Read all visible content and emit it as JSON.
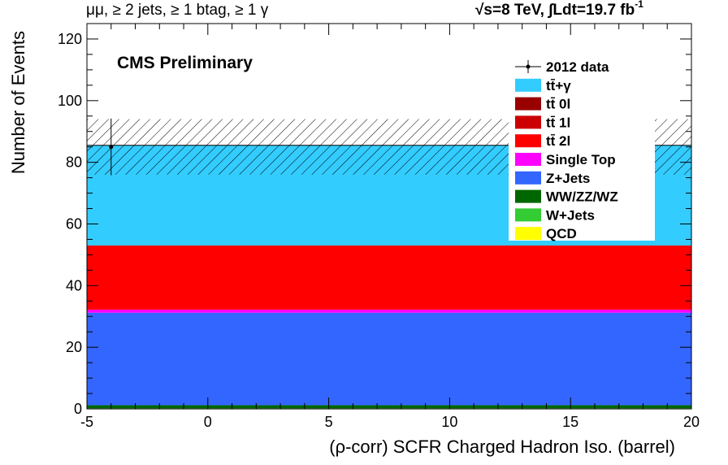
{
  "header": {
    "left": "μμ, ≥ 2 jets, ≥ 1 btag, ≥ 1 γ",
    "energy": "√s=8 TeV,",
    "lumi": "∫Ldt=19.7 fb",
    "lumi_exp": "-1"
  },
  "colors": {
    "ttgamma": "#33ccff",
    "tt0l": "#990000",
    "tt1l": "#cc0000",
    "tt2l": "#ff0000",
    "singletop": "#ff00ff",
    "zjets": "#3366ff",
    "diboson": "#006600",
    "wjets": "#33cc33",
    "qcd": "#ffff00"
  },
  "chart_data": {
    "type": "bar",
    "title": "CMS Preliminary",
    "xlabel": "(ρ-corr) SCFR Charged Hadron Iso. (barrel)",
    "ylabel": "Number of Events",
    "xlim": [
      -5,
      20
    ],
    "ylim": [
      0,
      125
    ],
    "x_ticks": [
      -5,
      0,
      5,
      10,
      15,
      20
    ],
    "y_ticks": [
      0,
      20,
      40,
      60,
      80,
      100,
      120
    ],
    "stacked": true,
    "bins": [
      [
        -5,
        20
      ]
    ],
    "series": [
      {
        "name": "QCD",
        "key": "qcd",
        "values": [
          0.0
        ]
      },
      {
        "name": "W+Jets",
        "key": "wjets",
        "values": [
          0.2
        ]
      },
      {
        "name": "WW/ZZ/WZ",
        "key": "diboson",
        "values": [
          1.0
        ]
      },
      {
        "name": "Z+Jets",
        "key": "zjets",
        "values": [
          30.0
        ]
      },
      {
        "name": "Single Top",
        "key": "singletop",
        "values": [
          1.0
        ]
      },
      {
        "name": "tt̄ 2l",
        "key": "tt2l",
        "values": [
          20.8
        ]
      },
      {
        "name": "tt̄ 1l",
        "key": "tt1l",
        "values": [
          0.0
        ]
      },
      {
        "name": "tt̄ 0l",
        "key": "tt0l",
        "values": [
          0.0
        ]
      },
      {
        "name": "tt̄+γ",
        "key": "ttgamma",
        "values": [
          32.5
        ]
      }
    ],
    "uncertainty_band": [
      76,
      94
    ],
    "data": {
      "name": "2012 data",
      "x": -4,
      "y": 85,
      "yerr": 9.2
    },
    "legend_order": [
      "2012 data",
      "tt̄+γ",
      "tt̄ 0l",
      "tt̄ 1l",
      "tt̄ 2l",
      "Single Top",
      "Z+Jets",
      "WW/ZZ/WZ",
      "W+Jets",
      "QCD"
    ],
    "legend_position": "top-right"
  }
}
